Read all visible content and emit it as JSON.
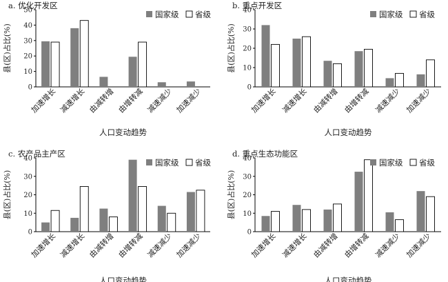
{
  "chart_data": [
    {
      "type": "bar",
      "title": "a. 优化开发区",
      "xlabel": "人口变动趋势",
      "ylabel": "县(区)占比(%)",
      "ylim": [
        0,
        50
      ],
      "yticks": [
        "0",
        "10",
        "20",
        "30",
        "40",
        "50"
      ],
      "categories": [
        "加速增长",
        "减速增长",
        "由减转增",
        "由增转减",
        "减速减少",
        "加速减少"
      ],
      "legend_position": "top-right",
      "series": [
        {
          "name": "国家级",
          "color": "#7f7f7f",
          "values": [
            29.5,
            38.0,
            6.5,
            19.5,
            3.0,
            3.5
          ]
        },
        {
          "name": "省级",
          "color": "#ffffff",
          "values": [
            29.0,
            43.0,
            0,
            29.0,
            0,
            0
          ]
        }
      ]
    },
    {
      "type": "bar",
      "title": "b. 重点开发区",
      "xlabel": "人口变动趋势",
      "ylabel": "县(区)占比(%)",
      "ylim": [
        0,
        40
      ],
      "yticks": [
        "0",
        "10",
        "20",
        "30",
        "40"
      ],
      "categories": [
        "加速增长",
        "减速增长",
        "由减转增",
        "由增转减",
        "减速减少",
        "加速减少"
      ],
      "legend_position": "top-right",
      "series": [
        {
          "name": "国家级",
          "color": "#7f7f7f",
          "values": [
            32.0,
            25.0,
            13.5,
            18.5,
            4.5,
            6.5
          ]
        },
        {
          "name": "省级",
          "color": "#ffffff",
          "values": [
            22.0,
            26.0,
            12.0,
            19.5,
            7.0,
            14.0
          ]
        }
      ]
    },
    {
      "type": "bar",
      "title": "c. 农产品主产区",
      "xlabel": "人口变动趋势",
      "ylabel": "县(区)占比(%)",
      "ylim": [
        0,
        40
      ],
      "yticks": [
        "0",
        "10",
        "20",
        "30",
        "40"
      ],
      "categories": [
        "加速增长",
        "减速增长",
        "由减转增",
        "由增转减",
        "减速减少",
        "加速减少"
      ],
      "legend_position": "top-right",
      "series": [
        {
          "name": "国家级",
          "color": "#7f7f7f",
          "values": [
            5.0,
            7.5,
            12.5,
            39.0,
            14.0,
            21.5
          ]
        },
        {
          "name": "省级",
          "color": "#ffffff",
          "values": [
            11.5,
            24.5,
            8.0,
            24.5,
            10.0,
            22.5
          ]
        }
      ]
    },
    {
      "type": "bar",
      "title": "d. 重点生态功能区",
      "xlabel": "人口变动趋势",
      "ylabel": "县(区)占比(%)",
      "ylim": [
        0,
        40
      ],
      "yticks": [
        "0",
        "10",
        "20",
        "30",
        "40"
      ],
      "categories": [
        "加速增长",
        "减速增长",
        "由减转增",
        "由增转减",
        "减速减少",
        "加速减少"
      ],
      "legend_position": "top-right",
      "series": [
        {
          "name": "国家级",
          "color": "#7f7f7f",
          "values": [
            8.5,
            14.5,
            12.0,
            32.5,
            10.5,
            22.0
          ]
        },
        {
          "name": "省级",
          "color": "#ffffff",
          "values": [
            11.0,
            12.0,
            15.0,
            39.0,
            6.5,
            19.0
          ]
        }
      ]
    }
  ]
}
